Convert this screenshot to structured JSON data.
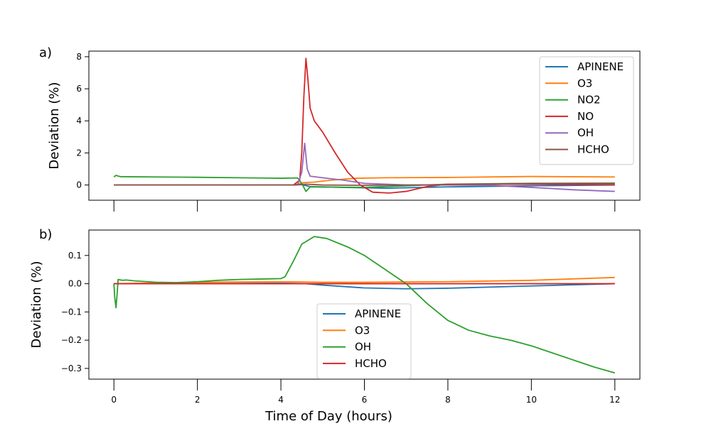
{
  "chart_data": [
    {
      "type": "line",
      "panel_label": "a)",
      "ylabel": "Deviation (%)",
      "xlabel": "",
      "xlim": [
        -0.6,
        12.6
      ],
      "ylim": [
        -0.95,
        8.35
      ],
      "xticks": [
        0,
        2,
        4,
        6,
        8,
        10,
        12
      ],
      "yticks": [
        0,
        2,
        4,
        6,
        8
      ],
      "ytick_labels": [
        "0",
        "2",
        "4",
        "6",
        "8"
      ],
      "show_xtick_labels": false,
      "legend_position": "top-right",
      "series": [
        {
          "name": "APINENE",
          "color": "#1f77b4",
          "points": [
            [
              0,
              0
            ],
            [
              4.2,
              0
            ],
            [
              4.5,
              0.02
            ],
            [
              4.7,
              -0.1
            ],
            [
              5.5,
              -0.15
            ],
            [
              6.5,
              -0.2
            ],
            [
              8,
              -0.12
            ],
            [
              10,
              -0.05
            ],
            [
              12,
              0
            ]
          ]
        },
        {
          "name": "O3",
          "color": "#ff7f0e",
          "points": [
            [
              0,
              0
            ],
            [
              4.3,
              0
            ],
            [
              4.55,
              0.15
            ],
            [
              4.8,
              0.18
            ],
            [
              5.2,
              0.3
            ],
            [
              5.8,
              0.42
            ],
            [
              6.5,
              0.45
            ],
            [
              8,
              0.47
            ],
            [
              10,
              0.53
            ],
            [
              12,
              0.5
            ]
          ]
        },
        {
          "name": "NO2",
          "color": "#2ca02c",
          "points": [
            [
              0,
              0.5
            ],
            [
              0.05,
              0.6
            ],
            [
              0.15,
              0.52
            ],
            [
              1,
              0.5
            ],
            [
              2,
              0.48
            ],
            [
              3,
              0.45
            ],
            [
              4,
              0.42
            ],
            [
              4.4,
              0.44
            ],
            [
              4.5,
              0.1
            ],
            [
              4.6,
              -0.4
            ],
            [
              4.7,
              -0.12
            ],
            [
              5,
              -0.13
            ],
            [
              6,
              -0.15
            ],
            [
              7,
              -0.05
            ],
            [
              8,
              0.05
            ],
            [
              9,
              0.08
            ],
            [
              10,
              0.1
            ],
            [
              12,
              0.1
            ]
          ]
        },
        {
          "name": "NO",
          "color": "#d62728",
          "points": [
            [
              0,
              0
            ],
            [
              4.3,
              0
            ],
            [
              4.45,
              0.3
            ],
            [
              4.5,
              2
            ],
            [
              4.55,
              5.5
            ],
            [
              4.6,
              7.9
            ],
            [
              4.65,
              6.5
            ],
            [
              4.7,
              4.8
            ],
            [
              4.8,
              4.0
            ],
            [
              5.0,
              3.3
            ],
            [
              5.3,
              2.0
            ],
            [
              5.6,
              0.8
            ],
            [
              5.9,
              0.0
            ],
            [
              6.2,
              -0.45
            ],
            [
              6.6,
              -0.5
            ],
            [
              7.0,
              -0.4
            ],
            [
              7.5,
              -0.1
            ],
            [
              8,
              0.05
            ],
            [
              10,
              0.05
            ],
            [
              12,
              0.02
            ]
          ]
        },
        {
          "name": "OH",
          "color": "#9467bd",
          "points": [
            [
              0,
              0
            ],
            [
              4.4,
              0
            ],
            [
              4.5,
              0.8
            ],
            [
              4.57,
              2.6
            ],
            [
              4.63,
              1.0
            ],
            [
              4.7,
              0.55
            ],
            [
              5.0,
              0.45
            ],
            [
              5.5,
              0.3
            ],
            [
              6.0,
              0.1
            ],
            [
              7,
              0.0
            ],
            [
              8,
              0.0
            ],
            [
              9,
              -0.02
            ],
            [
              10,
              -0.15
            ],
            [
              11,
              -0.3
            ],
            [
              12,
              -0.4
            ]
          ]
        },
        {
          "name": "HCHO",
          "color": "#8c564b",
          "points": [
            [
              0,
              0
            ],
            [
              4.3,
              0
            ],
            [
              4.6,
              0.05
            ],
            [
              5,
              0
            ],
            [
              6,
              -0.02
            ],
            [
              8,
              0.02
            ],
            [
              10,
              0.1
            ],
            [
              12,
              0.12
            ]
          ]
        }
      ]
    },
    {
      "type": "line",
      "panel_label": "b)",
      "ylabel": "Deviation (%)",
      "xlabel": "Time of Day (hours)",
      "xlim": [
        -0.6,
        12.6
      ],
      "ylim": [
        -0.338,
        0.19
      ],
      "xticks": [
        0,
        2,
        4,
        6,
        8,
        10,
        12
      ],
      "xtick_labels": [
        "0",
        "2",
        "4",
        "6",
        "8",
        "10",
        "12"
      ],
      "yticks": [
        -0.3,
        -0.2,
        -0.1,
        0.0,
        0.1
      ],
      "ytick_labels": [
        "−0.3",
        "−0.2",
        "−0.1",
        "0.0",
        "0.1"
      ],
      "show_xtick_labels": true,
      "legend_position": "lower-center",
      "series": [
        {
          "name": "APINENE",
          "color": "#1f77b4",
          "points": [
            [
              0,
              0
            ],
            [
              2,
              0
            ],
            [
              4,
              0.002
            ],
            [
              4.6,
              0
            ],
            [
              5,
              -0.005
            ],
            [
              6,
              -0.015
            ],
            [
              7,
              -0.018
            ],
            [
              8,
              -0.016
            ],
            [
              10,
              -0.008
            ],
            [
              12,
              0
            ]
          ]
        },
        {
          "name": "O3",
          "color": "#ff7f0e",
          "points": [
            [
              0,
              0
            ],
            [
              2,
              0.005
            ],
            [
              4,
              0.007
            ],
            [
              5,
              0.005
            ],
            [
              6,
              0.005
            ],
            [
              8,
              0.007
            ],
            [
              10,
              0.012
            ],
            [
              12,
              0.022
            ]
          ]
        },
        {
          "name": "OH",
          "color": "#2ca02c",
          "points": [
            [
              0,
              0
            ],
            [
              0.02,
              -0.05
            ],
            [
              0.05,
              -0.085
            ],
            [
              0.08,
              -0.03
            ],
            [
              0.1,
              0.015
            ],
            [
              0.2,
              0.012
            ],
            [
              0.3,
              0.013
            ],
            [
              0.5,
              0.01
            ],
            [
              1,
              0.005
            ],
            [
              1.5,
              0.004
            ],
            [
              2,
              0.007
            ],
            [
              2.5,
              0.012
            ],
            [
              3,
              0.015
            ],
            [
              4,
              0.018
            ],
            [
              4.1,
              0.025
            ],
            [
              4.3,
              0.08
            ],
            [
              4.5,
              0.14
            ],
            [
              4.8,
              0.167
            ],
            [
              5.1,
              0.16
            ],
            [
              5.6,
              0.13
            ],
            [
              6,
              0.1
            ],
            [
              6.5,
              0.05
            ],
            [
              7,
              0.0
            ],
            [
              7.5,
              -0.07
            ],
            [
              8,
              -0.13
            ],
            [
              8.5,
              -0.165
            ],
            [
              9,
              -0.185
            ],
            [
              9.5,
              -0.2
            ],
            [
              10,
              -0.22
            ],
            [
              10.5,
              -0.245
            ],
            [
              11,
              -0.27
            ],
            [
              11.5,
              -0.295
            ],
            [
              12,
              -0.316
            ]
          ]
        },
        {
          "name": "HCHO",
          "color": "#d62728",
          "points": [
            [
              0,
              0
            ],
            [
              4,
              0
            ],
            [
              6,
              0
            ],
            [
              8,
              0
            ],
            [
              10,
              0
            ],
            [
              12,
              0
            ]
          ]
        }
      ]
    }
  ]
}
